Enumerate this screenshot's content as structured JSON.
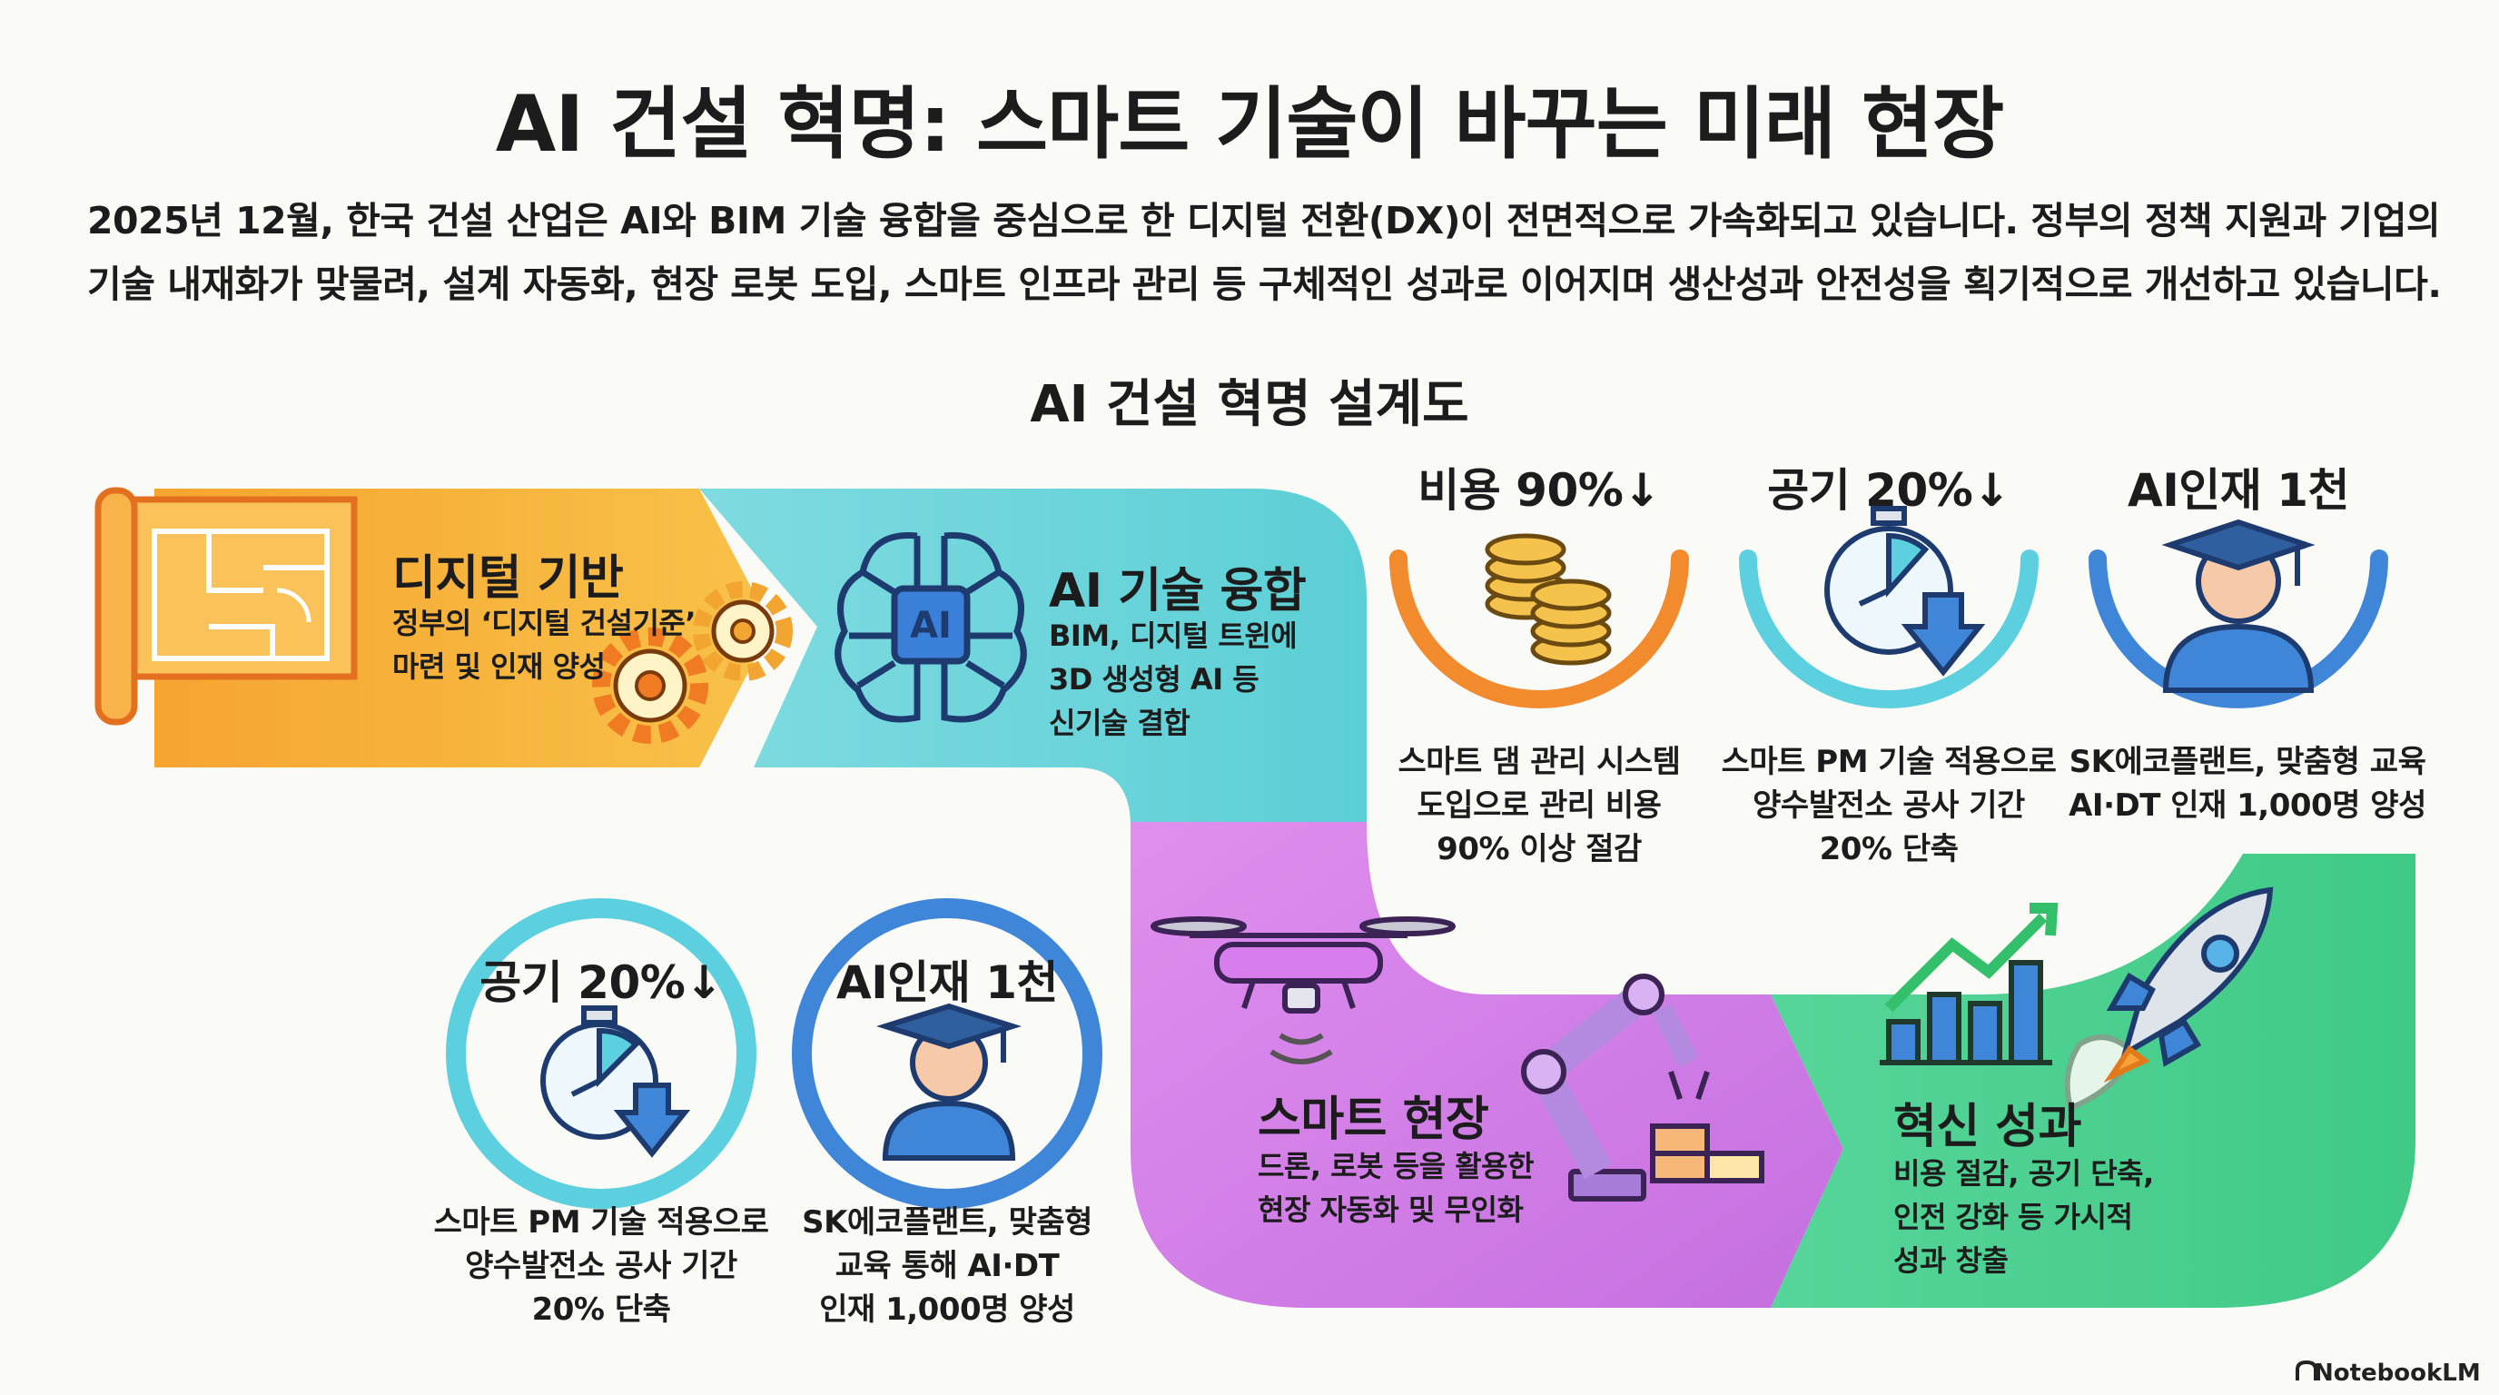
{
  "title": "AI 건설 혁명: 스마트 기술이 바꾸는 미래 현장",
  "intro": {
    "line1": "2025년 12월, 한국 건설 산업은 AI와 BIM 기술 융합을 중심으로 한 디지털 전환(DX)이 전면적으로 가속화되고 있습니다. 정부의 정책 지원과 기업의",
    "line2": "기술 내재화가 맞물려, 설계 자동화, 현장 로봇 도입, 스마트 인프라 관리 등 구체적인 성과로 이어지며 생산성과 안전성을 획기적으로 개선하고 있습니다."
  },
  "diagram_title": "AI 건설 혁명 설계도",
  "stages": [
    {
      "title": "디지털 기반",
      "line1": "정부의 ‘디지털 건설기준’",
      "line2": "마련 및 인재 양성",
      "color": "#f6b23a"
    },
    {
      "title": "AI 기술 융합",
      "line1": "BIM, 디지털 트윈에",
      "line2": "3D 생성형 AI 등",
      "line3": "신기술 결합",
      "color": "#5ccfd6"
    },
    {
      "title": "스마트 현장",
      "line1": "드론, 로봇 등을 활용한",
      "line2": "현장 자동화 및 무인화",
      "color": "#d27ee6"
    },
    {
      "title": "혁신 성과",
      "line1": "비용 절감, 공기 단축,",
      "line2": "인전 강화 등 가시적",
      "line3": "성과 창출",
      "color": "#4fd28f"
    }
  ],
  "top_stats": [
    {
      "label": "비용 90%↓",
      "line1": "스마트 댐 관리 시스템",
      "line2": "도입으로 관리 비용",
      "line3": "90% 이상 절감",
      "color": "#f28a2e",
      "icon": "coins-icon"
    },
    {
      "label": "공기 20%↓",
      "line1": "스마트 PM 기술 적용으로",
      "line2": "양수발전소 공사 기간",
      "line3": "20% 단축",
      "color": "#5dd0e0",
      "icon": "stopwatch-icon"
    },
    {
      "label": "AI인재 1천",
      "line1": "SK에코플랜트, 맞춤형 교육",
      "line2": "AI·DT 인재 1,000명 양성",
      "color": "#3f86d8",
      "icon": "graduate-icon"
    }
  ],
  "bottom_stats": [
    {
      "label": "공기 20%↓",
      "line1": "스마트 PM 기술 적용으로",
      "line2": "양수발전소 공사 기간",
      "line3": "20% 단축",
      "color": "#5dd0e0",
      "icon": "stopwatch-icon"
    },
    {
      "label": "AI인재 1천",
      "line1": "SK에코플랜트, 맞춤형",
      "line2": "교육 통해 AI·DT",
      "line3": "인재 1,000명 양성",
      "color": "#3f86d8",
      "icon": "graduate-icon"
    }
  ],
  "watermark": "NotebookLM"
}
